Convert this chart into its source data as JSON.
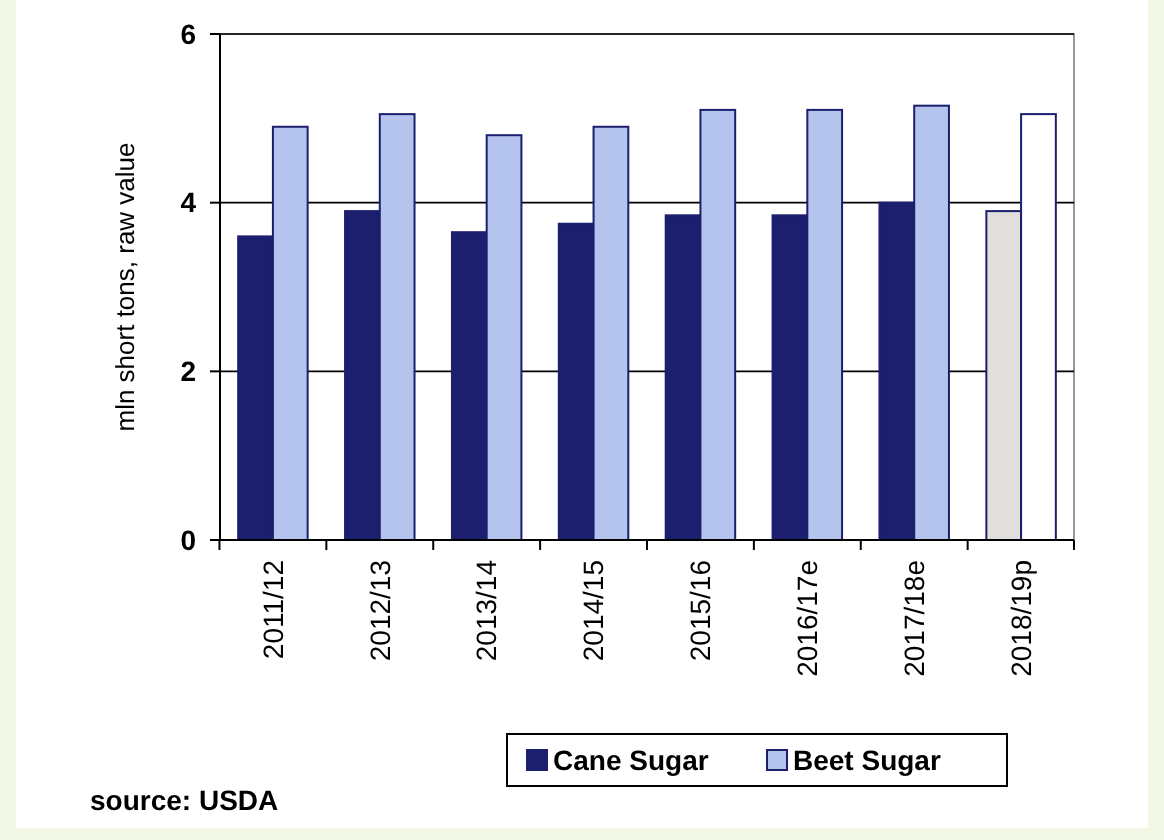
{
  "chart_data": {
    "type": "bar",
    "ylabel": "mln short tons, raw value",
    "categories": [
      "2011/12",
      "2012/13",
      "2013/14",
      "2014/15",
      "2015/16",
      "2016/17e",
      "2017/18e",
      "2018/19p"
    ],
    "series": [
      {
        "name": "Cane Sugar",
        "color": "#1c1f6e",
        "colors": [
          "#1c1f6e",
          "#1c1f6e",
          "#1c1f6e",
          "#1c1f6e",
          "#1c1f6e",
          "#1c1f6e",
          "#1c1f6e",
          "#e2dedb"
        ],
        "values": [
          3.6,
          3.9,
          3.65,
          3.75,
          3.85,
          3.85,
          4.0,
          3.9
        ]
      },
      {
        "name": "Beet Sugar",
        "color": "#b4c4ec",
        "colors": [
          "#b4c4ec",
          "#b4c4ec",
          "#b4c4ec",
          "#b4c4ec",
          "#b4c4ec",
          "#b4c4ec",
          "#b4c4ec",
          "#ffffff"
        ],
        "values": [
          4.9,
          5.05,
          4.8,
          4.9,
          5.1,
          5.1,
          5.15,
          5.05
        ]
      }
    ],
    "ylim": [
      0,
      6
    ],
    "yticks": [
      0,
      2,
      4,
      6
    ],
    "grid": "y",
    "legend": "bottom",
    "annotations": [
      "source: USDA"
    ]
  }
}
